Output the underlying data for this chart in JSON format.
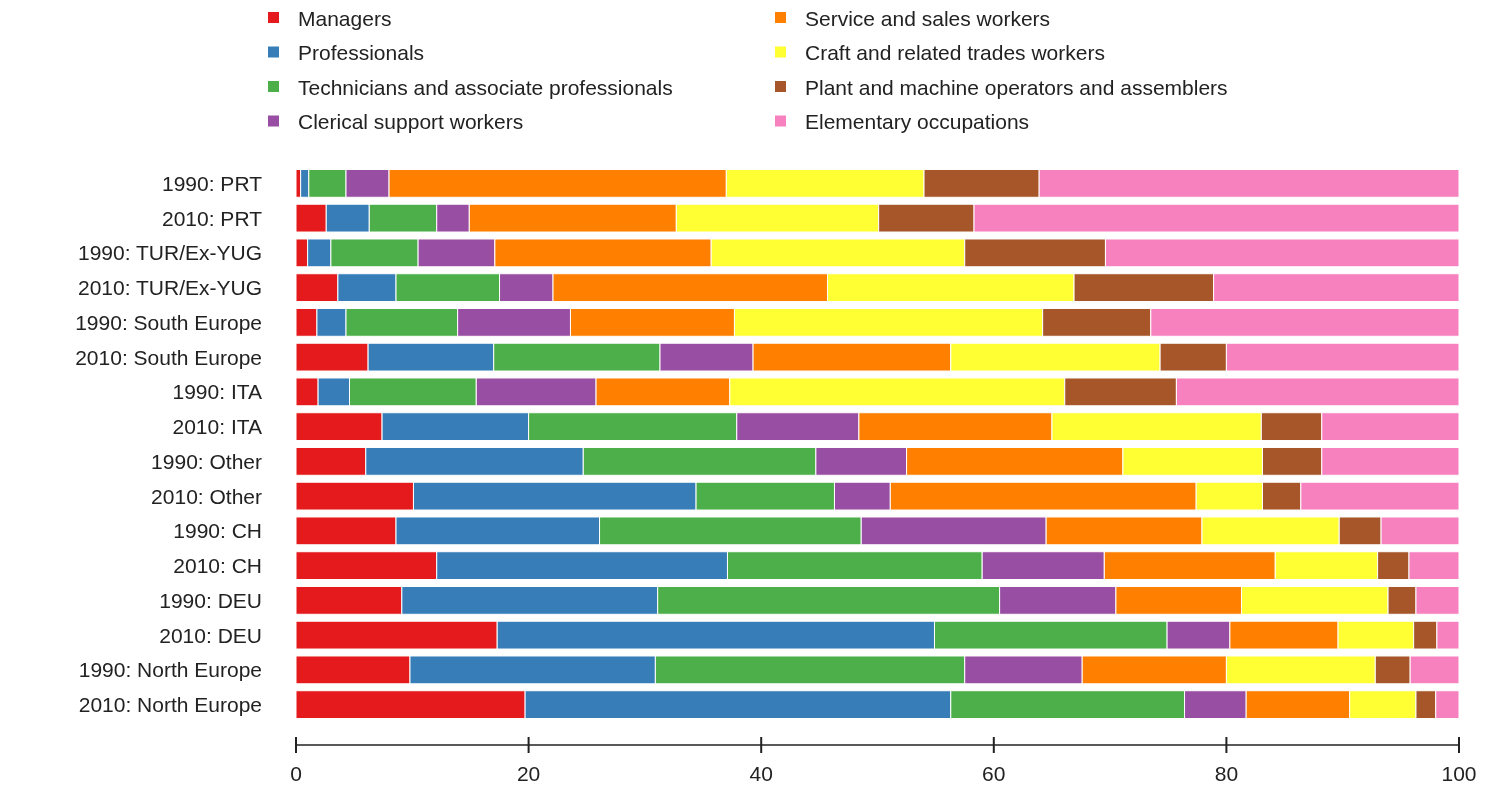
{
  "chart_data": {
    "type": "bar",
    "orientation": "horizontal",
    "stacked": true,
    "legend": "top",
    "categories": [
      "1990: PRT",
      "2010: PRT",
      "1990: TUR/Ex-YUG",
      "2010: TUR/Ex-YUG",
      "1990: South Europe",
      "2010: South Europe",
      "1990: ITA",
      "2010: ITA",
      "1990: Other",
      "2010: Other",
      "1990: CH",
      "2010: CH",
      "1990: DEU",
      "2010: DEU",
      "1990: North Europe",
      "2010: North Europe"
    ],
    "xlim": [
      0,
      100
    ],
    "xticks": [
      0,
      20,
      40,
      60,
      80,
      100
    ],
    "series": [
      {
        "name": "Managers",
        "color": "#e41a1c",
        "values": [
          0.4,
          2.6,
          1.0,
          3.6,
          1.8,
          6.2,
          1.9,
          7.4,
          6.0,
          10.1,
          8.6,
          12.1,
          9.1,
          17.3,
          9.8,
          19.7
        ]
      },
      {
        "name": "Professionals",
        "color": "#377eb8",
        "values": [
          0.7,
          3.7,
          2.0,
          5.0,
          2.5,
          10.8,
          2.7,
          12.6,
          18.7,
          24.3,
          17.5,
          25.0,
          22.0,
          37.6,
          21.1,
          36.6
        ]
      },
      {
        "name": "Technicians and associate professionals",
        "color": "#4daf4a",
        "values": [
          3.2,
          5.8,
          7.5,
          8.9,
          9.6,
          14.3,
          10.9,
          17.9,
          20.0,
          11.9,
          22.5,
          21.9,
          29.4,
          20.0,
          26.6,
          20.1
        ]
      },
      {
        "name": "Clerical support workers",
        "color": "#984ea3",
        "values": [
          3.7,
          2.8,
          6.6,
          4.6,
          9.7,
          8.0,
          10.3,
          10.5,
          7.8,
          4.8,
          15.9,
          10.5,
          10.0,
          5.4,
          10.1,
          5.3
        ]
      },
      {
        "name": "Service and sales workers",
        "color": "#ff7f00",
        "values": [
          29.0,
          17.8,
          18.6,
          23.6,
          14.1,
          17.0,
          11.5,
          16.6,
          18.6,
          26.3,
          13.4,
          14.7,
          10.8,
          9.3,
          12.4,
          8.9
        ]
      },
      {
        "name": "Craft and related trades workers",
        "color": "#ffff33",
        "values": [
          17.0,
          17.4,
          21.8,
          21.2,
          26.5,
          18.0,
          28.8,
          18.0,
          12.0,
          5.7,
          11.8,
          8.8,
          12.6,
          6.5,
          12.8,
          5.7
        ]
      },
      {
        "name": "Plant and machine operators and assemblers",
        "color": "#a65628",
        "values": [
          9.9,
          8.2,
          12.1,
          12.0,
          9.3,
          5.7,
          9.6,
          5.2,
          5.1,
          3.3,
          3.6,
          2.7,
          2.4,
          2.0,
          3.0,
          1.7
        ]
      },
      {
        "name": "Elementary occupations",
        "color": "#f781bf",
        "values": [
          36.1,
          41.7,
          30.4,
          21.1,
          26.5,
          20.0,
          24.3,
          11.8,
          11.8,
          13.6,
          6.7,
          4.3,
          3.7,
          1.9,
          4.2,
          2.0
        ]
      }
    ]
  }
}
